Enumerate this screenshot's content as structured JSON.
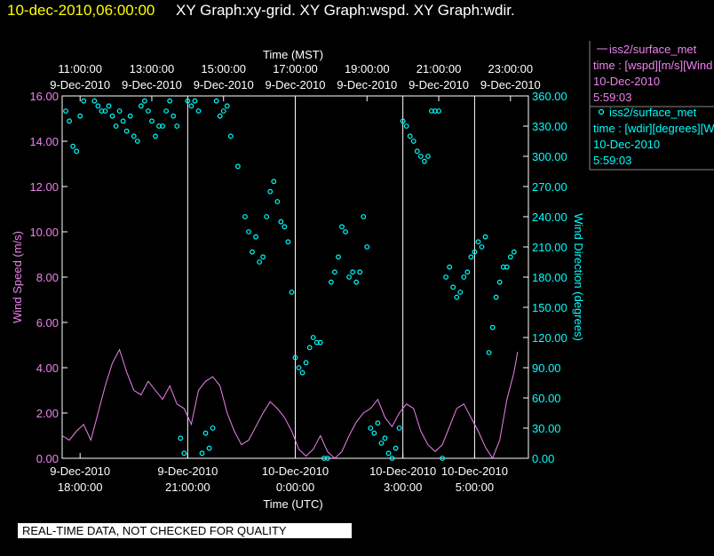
{
  "header": {
    "timestamp": "10-dec-2010,06:00:00",
    "graphs": "XY Graph:xy-grid.  XY Graph:wspd.  XY Graph:wdir."
  },
  "footer": {
    "disclaimer": "REAL-TIME DATA, NOT CHECKED FOR QUALITY"
  },
  "legend": [
    {
      "name": "iss2/surface_met",
      "marker": "line",
      "color": "#ee82ee",
      "lines": [
        "time : [wspd][m/s][Wind",
        "10-Dec-2010",
        "5:59:03"
      ]
    },
    {
      "name": "iss2/surface_met",
      "marker": "circle",
      "color": "#00ffff",
      "lines": [
        "time : [wdir][degrees][Wind",
        "10-Dec-2010",
        "5:59:03"
      ]
    }
  ],
  "colors": {
    "wspd": "#ee82ee",
    "wdir": "#00ffff",
    "text": "#ffffff",
    "grid": "#ffffff"
  },
  "chart_data": {
    "type": "line",
    "title": "",
    "top_axis": {
      "label": "Time (MST)",
      "ticks": [
        {
          "hour": 11,
          "time": "11:00:00",
          "date": "9-Dec-2010"
        },
        {
          "hour": 13,
          "time": "13:00:00",
          "date": "9-Dec-2010"
        },
        {
          "hour": 15,
          "time": "15:00:00",
          "date": "9-Dec-2010"
        },
        {
          "hour": 17,
          "time": "17:00:00",
          "date": "9-Dec-2010"
        },
        {
          "hour": 19,
          "time": "19:00:00",
          "date": "9-Dec-2010"
        },
        {
          "hour": 21,
          "time": "21:00:00",
          "date": "9-Dec-2010"
        },
        {
          "hour": 23,
          "time": "23:00:00",
          "date": "9-Dec-2010"
        }
      ]
    },
    "bottom_axis": {
      "label": "Time (UTC)",
      "xlim": [
        17.5,
        30.5
      ],
      "ticks": [
        {
          "hour": 18,
          "date": "9-Dec-2010",
          "time": "18:00:00"
        },
        {
          "hour": 21,
          "date": "9-Dec-2010",
          "time": "21:00:00"
        },
        {
          "hour": 24,
          "date": "10-Dec-2010",
          "time": "0:00:00"
        },
        {
          "hour": 27,
          "date": "10-Dec-2010",
          "time": "3:00:00"
        },
        {
          "hour": 29,
          "date": "10-Dec-2010",
          "time": "5:00:00"
        }
      ]
    },
    "y_left": {
      "label": "Wind Speed (m/s)",
      "ylim": [
        0,
        16
      ],
      "ticks": [
        "0.00",
        "2.00",
        "4.00",
        "6.00",
        "8.00",
        "10.00",
        "12.00",
        "14.00",
        "16.00"
      ]
    },
    "y_right": {
      "label": "Wind Direction (degrees)",
      "ylim": [
        0,
        360
      ],
      "ticks": [
        "0.00",
        "30.00",
        "60.00",
        "90.00",
        "120.00",
        "150.00",
        "180.00",
        "210.00",
        "240.00",
        "270.00",
        "300.00",
        "330.00",
        "360.00"
      ]
    },
    "vertical_grid_hours": [
      21,
      24,
      27,
      29
    ],
    "series": [
      {
        "name": "wspd",
        "axis": "left",
        "style": "line",
        "x": [
          17.5,
          17.7,
          17.9,
          18.1,
          18.3,
          18.5,
          18.7,
          18.9,
          19.1,
          19.3,
          19.5,
          19.7,
          19.9,
          20.1,
          20.3,
          20.5,
          20.7,
          20.9,
          21.1,
          21.3,
          21.5,
          21.7,
          21.9,
          22.1,
          22.3,
          22.5,
          22.7,
          22.9,
          23.1,
          23.3,
          23.5,
          23.7,
          23.9,
          24.1,
          24.3,
          24.5,
          24.7,
          24.9,
          25.1,
          25.3,
          25.5,
          25.7,
          25.9,
          26.1,
          26.3,
          26.5,
          26.7,
          26.9,
          27.1,
          27.3,
          27.5,
          27.7,
          27.9,
          28.1,
          28.3,
          28.5,
          28.7,
          28.9,
          29.1,
          29.3,
          29.5,
          29.7,
          29.9,
          30.1,
          30.2
        ],
        "values": [
          1.0,
          0.8,
          1.2,
          1.5,
          0.8,
          2.0,
          3.2,
          4.2,
          4.8,
          3.8,
          3.0,
          2.8,
          3.4,
          3.0,
          2.6,
          3.2,
          2.4,
          2.2,
          1.5,
          3.0,
          3.4,
          3.6,
          3.2,
          2.0,
          1.2,
          0.6,
          0.8,
          1.4,
          2.0,
          2.5,
          2.2,
          1.8,
          1.2,
          0.4,
          0.1,
          0.4,
          1.0,
          0.3,
          0.0,
          0.3,
          1.0,
          1.6,
          2.0,
          2.2,
          2.6,
          1.8,
          1.4,
          2.0,
          2.4,
          2.2,
          1.2,
          0.6,
          0.3,
          0.6,
          1.4,
          2.2,
          2.4,
          1.8,
          1.2,
          0.5,
          0.0,
          0.8,
          2.6,
          3.8,
          4.7
        ]
      },
      {
        "name": "wdir",
        "axis": "right",
        "style": "circle",
        "x": [
          17.6,
          17.7,
          17.8,
          17.9,
          18.0,
          18.1,
          18.4,
          18.5,
          18.6,
          18.7,
          18.8,
          18.9,
          19.0,
          19.1,
          19.2,
          19.3,
          19.4,
          19.5,
          19.6,
          19.7,
          19.8,
          19.9,
          20.0,
          20.1,
          20.2,
          20.3,
          20.4,
          20.5,
          20.6,
          20.7,
          20.8,
          20.9,
          21.0,
          21.1,
          21.2,
          21.3,
          21.4,
          21.5,
          21.6,
          21.7,
          21.8,
          21.9,
          22.0,
          22.1,
          22.2,
          22.4,
          22.6,
          22.7,
          22.8,
          22.9,
          23.0,
          23.1,
          23.2,
          23.3,
          23.4,
          23.5,
          23.6,
          23.7,
          23.8,
          23.9,
          24.0,
          24.1,
          24.2,
          24.3,
          24.4,
          24.5,
          24.6,
          24.7,
          24.8,
          24.9,
          25.0,
          25.1,
          25.2,
          25.3,
          25.4,
          25.5,
          25.6,
          25.7,
          25.8,
          25.9,
          26.0,
          26.1,
          26.2,
          26.3,
          26.4,
          26.5,
          26.6,
          26.7,
          26.8,
          26.9,
          27.0,
          27.1,
          27.2,
          27.3,
          27.4,
          27.5,
          27.6,
          27.7,
          27.8,
          27.9,
          28.0,
          28.1,
          28.2,
          28.3,
          28.4,
          28.5,
          28.6,
          28.7,
          28.8,
          28.9,
          29.0,
          29.1,
          29.2,
          29.3,
          29.4,
          29.5,
          29.6,
          29.7,
          29.8,
          29.9,
          30.0,
          30.1
        ],
        "values": [
          345,
          335,
          310,
          305,
          340,
          355,
          355,
          350,
          345,
          345,
          350,
          340,
          330,
          345,
          335,
          325,
          340,
          320,
          315,
          350,
          355,
          345,
          335,
          320,
          330,
          330,
          345,
          355,
          340,
          330,
          20,
          5,
          355,
          350,
          355,
          345,
          5,
          25,
          10,
          30,
          355,
          340,
          345,
          350,
          320,
          290,
          240,
          225,
          205,
          220,
          195,
          200,
          240,
          265,
          275,
          255,
          235,
          230,
          215,
          165,
          100,
          90,
          85,
          95,
          110,
          120,
          115,
          115,
          0,
          0,
          175,
          185,
          200,
          230,
          225,
          180,
          185,
          175,
          185,
          240,
          210,
          30,
          25,
          35,
          15,
          20,
          5,
          0,
          10,
          30,
          335,
          330,
          320,
          315,
          305,
          300,
          295,
          300,
          345,
          345,
          345,
          0,
          180,
          190,
          170,
          160,
          165,
          180,
          185,
          200,
          205,
          215,
          210,
          220,
          105,
          130,
          160,
          175,
          190,
          190,
          200,
          205
        ]
      }
    ]
  }
}
